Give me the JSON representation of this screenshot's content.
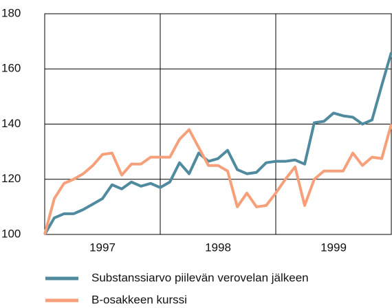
{
  "chart_data": {
    "type": "line",
    "x": [
      1997,
      1997.083,
      1997.167,
      1997.25,
      1997.333,
      1997.417,
      1997.5,
      1997.583,
      1997.667,
      1997.75,
      1997.833,
      1997.917,
      1998,
      1998.083,
      1998.167,
      1998.25,
      1998.333,
      1998.417,
      1998.5,
      1998.583,
      1998.667,
      1998.75,
      1998.833,
      1998.917,
      1999,
      1999.083,
      1999.167,
      1999.25,
      1999.333,
      1999.417,
      1999.5,
      1999.583,
      1999.667,
      1999.75,
      1999.833,
      1999.917,
      2000
    ],
    "series": [
      {
        "name": "Substanssiarvo piilevän verovelan jälkeen",
        "color": "#4f8a9e",
        "values": [
          100,
          106,
          107.5,
          107.5,
          109,
          111,
          113,
          118,
          116.5,
          119,
          117.5,
          118.5,
          117,
          119,
          126,
          122,
          129.5,
          126.5,
          127.5,
          130.5,
          123.5,
          122,
          122.5,
          126,
          126.5,
          126.5,
          127,
          125.5,
          140.5,
          141,
          144,
          143,
          142.5,
          140,
          141.5,
          154,
          166
        ]
      },
      {
        "name": "B-osakkeen kurssi",
        "color": "#f5a07a",
        "values": [
          100,
          113,
          118.5,
          120,
          122,
          125,
          129,
          129.5,
          121.5,
          125.5,
          125.5,
          128,
          128,
          128,
          134.5,
          138,
          131.5,
          125,
          125,
          123,
          110,
          115,
          110,
          110.5,
          115,
          120,
          124.5,
          110.5,
          120,
          123,
          123,
          123,
          129.5,
          125,
          128,
          127.5,
          140
        ]
      }
    ],
    "xlim": [
      1997,
      2000
    ],
    "xticks": [
      {
        "value": 1997.5,
        "label": "1997"
      },
      {
        "value": 1998.5,
        "label": "1998"
      },
      {
        "value": 1999.5,
        "label": "1999"
      }
    ],
    "xgrid": [
      1998,
      1999
    ],
    "ylim": [
      100,
      180
    ],
    "yticks": [
      100,
      120,
      140,
      160,
      180
    ],
    "grid": true
  }
}
